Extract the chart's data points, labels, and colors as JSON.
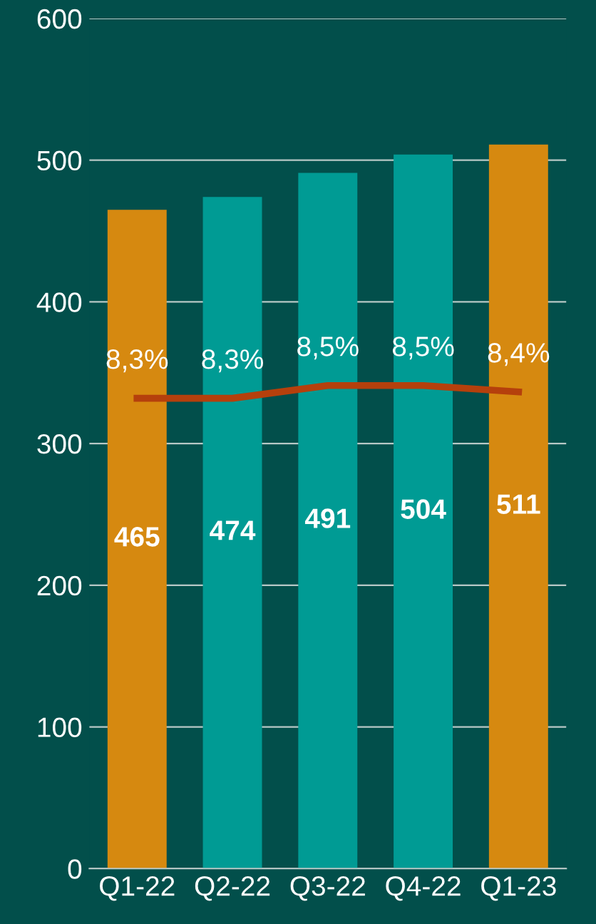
{
  "chart_data": {
    "type": "bar",
    "categories": [
      "Q1-22",
      "Q2-22",
      "Q3-22",
      "Q4-22",
      "Q1-23"
    ],
    "series": [
      {
        "values": [
          465,
          474,
          491,
          504,
          511
        ],
        "colors": [
          "#d68910",
          "#009b94",
          "#009b94",
          "#009b94",
          "#d68910"
        ],
        "data_labels": true
      },
      {
        "type": "line",
        "axis": "y2",
        "color": "#b5400c",
        "values": [
          8.3,
          8.3,
          8.5,
          8.5,
          8.4
        ],
        "value_labels": [
          "8,3%",
          "8,3%",
          "8,5%",
          "8,5%",
          "8,4%"
        ]
      }
    ],
    "ylim": [
      0,
      600
    ],
    "yticks": [
      0,
      100,
      200,
      300,
      400,
      500,
      600
    ],
    "y2lim": [
      0.92,
      14.26
    ],
    "grid": "y",
    "marker": "none",
    "line_style": "solid"
  }
}
